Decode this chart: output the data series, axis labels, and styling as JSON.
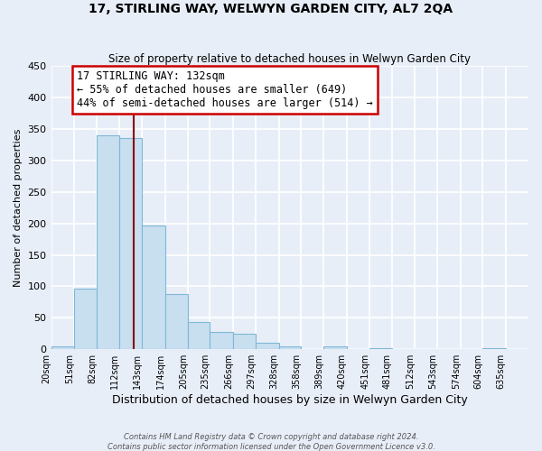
{
  "title": "17, STIRLING WAY, WELWYN GARDEN CITY, AL7 2QA",
  "subtitle": "Size of property relative to detached houses in Welwyn Garden City",
  "xlabel": "Distribution of detached houses by size in Welwyn Garden City",
  "ylabel": "Number of detached properties",
  "bar_labels": [
    "20sqm",
    "51sqm",
    "82sqm",
    "112sqm",
    "143sqm",
    "174sqm",
    "205sqm",
    "235sqm",
    "266sqm",
    "297sqm",
    "328sqm",
    "358sqm",
    "389sqm",
    "420sqm",
    "451sqm",
    "481sqm",
    "512sqm",
    "543sqm",
    "574sqm",
    "604sqm",
    "635sqm"
  ],
  "bar_values": [
    5,
    97,
    340,
    335,
    197,
    87,
    43,
    27,
    25,
    11,
    4,
    0,
    5,
    0,
    2,
    0,
    0,
    0,
    0,
    2,
    0
  ],
  "bar_color": "#c8dff0",
  "bar_edgecolor": "#7fb8d8",
  "vline_color": "#8b0000",
  "annotation_title": "17 STIRLING WAY: 132sqm",
  "annotation_line1": "← 55% of detached houses are smaller (649)",
  "annotation_line2": "44% of semi-detached houses are larger (514) →",
  "annotation_box_facecolor": "#ffffff",
  "annotation_box_edgecolor": "#cc0000",
  "ylim": [
    0,
    450
  ],
  "yticks": [
    0,
    50,
    100,
    150,
    200,
    250,
    300,
    350,
    400,
    450
  ],
  "bin_edges": [
    20,
    51,
    82,
    112,
    143,
    174,
    205,
    235,
    266,
    297,
    328,
    358,
    389,
    420,
    451,
    481,
    512,
    543,
    574,
    604,
    635,
    666
  ],
  "vline_x": 132,
  "footer1": "Contains HM Land Registry data © Crown copyright and database right 2024.",
  "footer2": "Contains public sector information licensed under the Open Government Licence v3.0.",
  "bg_color": "#e8eef8",
  "grid_color": "#ffffff"
}
